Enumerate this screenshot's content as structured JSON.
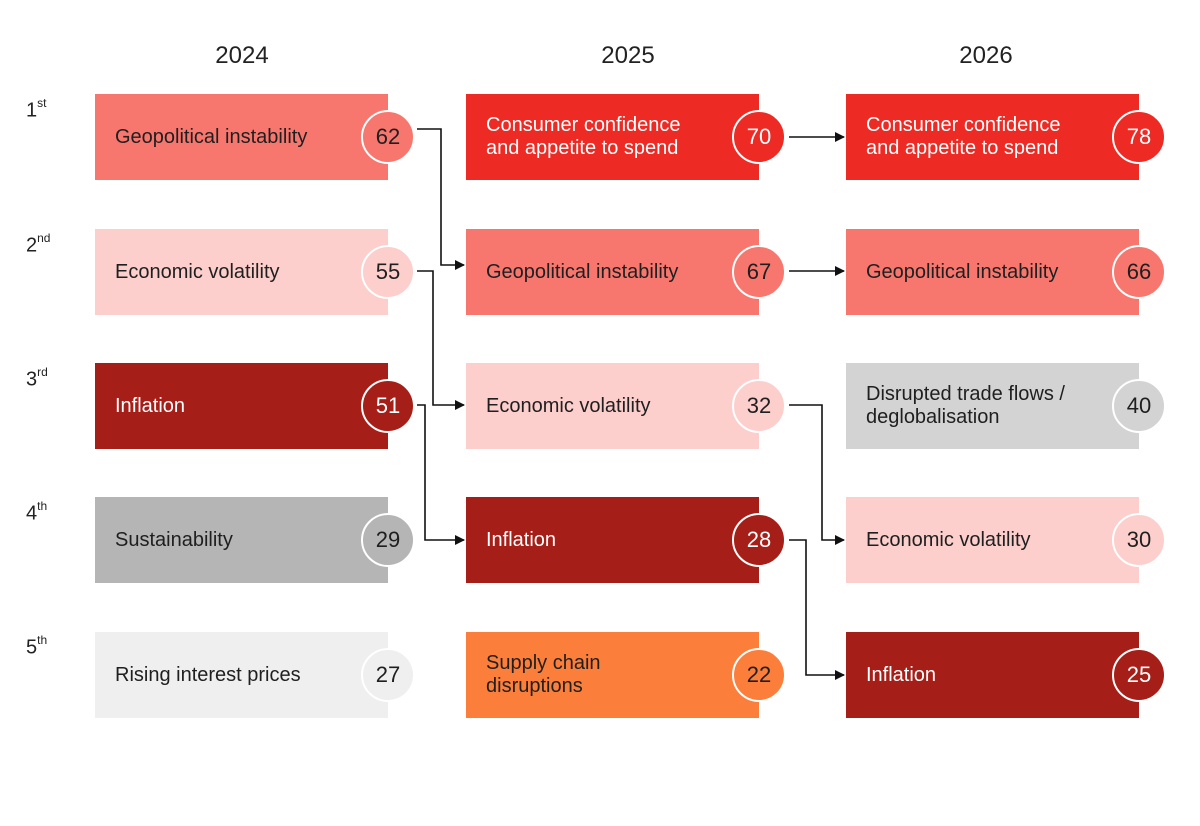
{
  "years": [
    "2024",
    "2025",
    "2026"
  ],
  "ranks": [
    {
      "num": "1",
      "suffix": "st"
    },
    {
      "num": "2",
      "suffix": "nd"
    },
    {
      "num": "3",
      "suffix": "rd"
    },
    {
      "num": "4",
      "suffix": "th"
    },
    {
      "num": "5",
      "suffix": "th"
    }
  ],
  "columns": [
    {
      "year": "2024",
      "items": [
        {
          "label": "Geopolitical instability",
          "score": "62"
        },
        {
          "label": "Economic volatility",
          "score": "55"
        },
        {
          "label": "Inflation",
          "score": "51"
        },
        {
          "label": "Sustainability",
          "score": "29"
        },
        {
          "label": "Rising interest prices",
          "score": "27"
        }
      ]
    },
    {
      "year": "2025",
      "items": [
        {
          "label": "Consumer confidence and appetite to spend",
          "score": "70"
        },
        {
          "label": "Geopolitical instability",
          "score": "67"
        },
        {
          "label": "Economic volatility",
          "score": "32"
        },
        {
          "label": "Inflation",
          "score": "28"
        },
        {
          "label": "Supply chain disruptions",
          "score": "22"
        }
      ]
    },
    {
      "year": "2026",
      "items": [
        {
          "label": "Consumer confidence and appetite to spend",
          "score": "78"
        },
        {
          "label": "Geopolitical instability",
          "score": "66"
        },
        {
          "label": "Disrupted trade flows / deglobalisation",
          "score": "40"
        },
        {
          "label": "Economic volatility",
          "score": "30"
        },
        {
          "label": "Inflation",
          "score": "25"
        }
      ]
    }
  ],
  "category_colors": {
    "Consumer confidence and appetite to spend": {
      "fill": "#ee2a24",
      "text": "#ffffff"
    },
    "Geopolitical instability": {
      "fill": "#f7776e",
      "text": "#1f1f1f"
    },
    "Economic volatility": {
      "fill": "#fdcfcc",
      "text": "#1f1f1f"
    },
    "Inflation": {
      "fill": "#a61e18",
      "text": "#ffffff"
    },
    "Sustainability": {
      "fill": "#b5b5b5",
      "text": "#1f1f1f"
    },
    "Rising interest prices": {
      "fill": "#efefef",
      "text": "#1f1f1f"
    },
    "Supply chain disruptions": {
      "fill": "#fb7e3b",
      "text": "#1f1f1f"
    },
    "Disrupted trade flows / deglobalisation": {
      "fill": "#d3d3d3",
      "text": "#1f1f1f"
    }
  }
}
